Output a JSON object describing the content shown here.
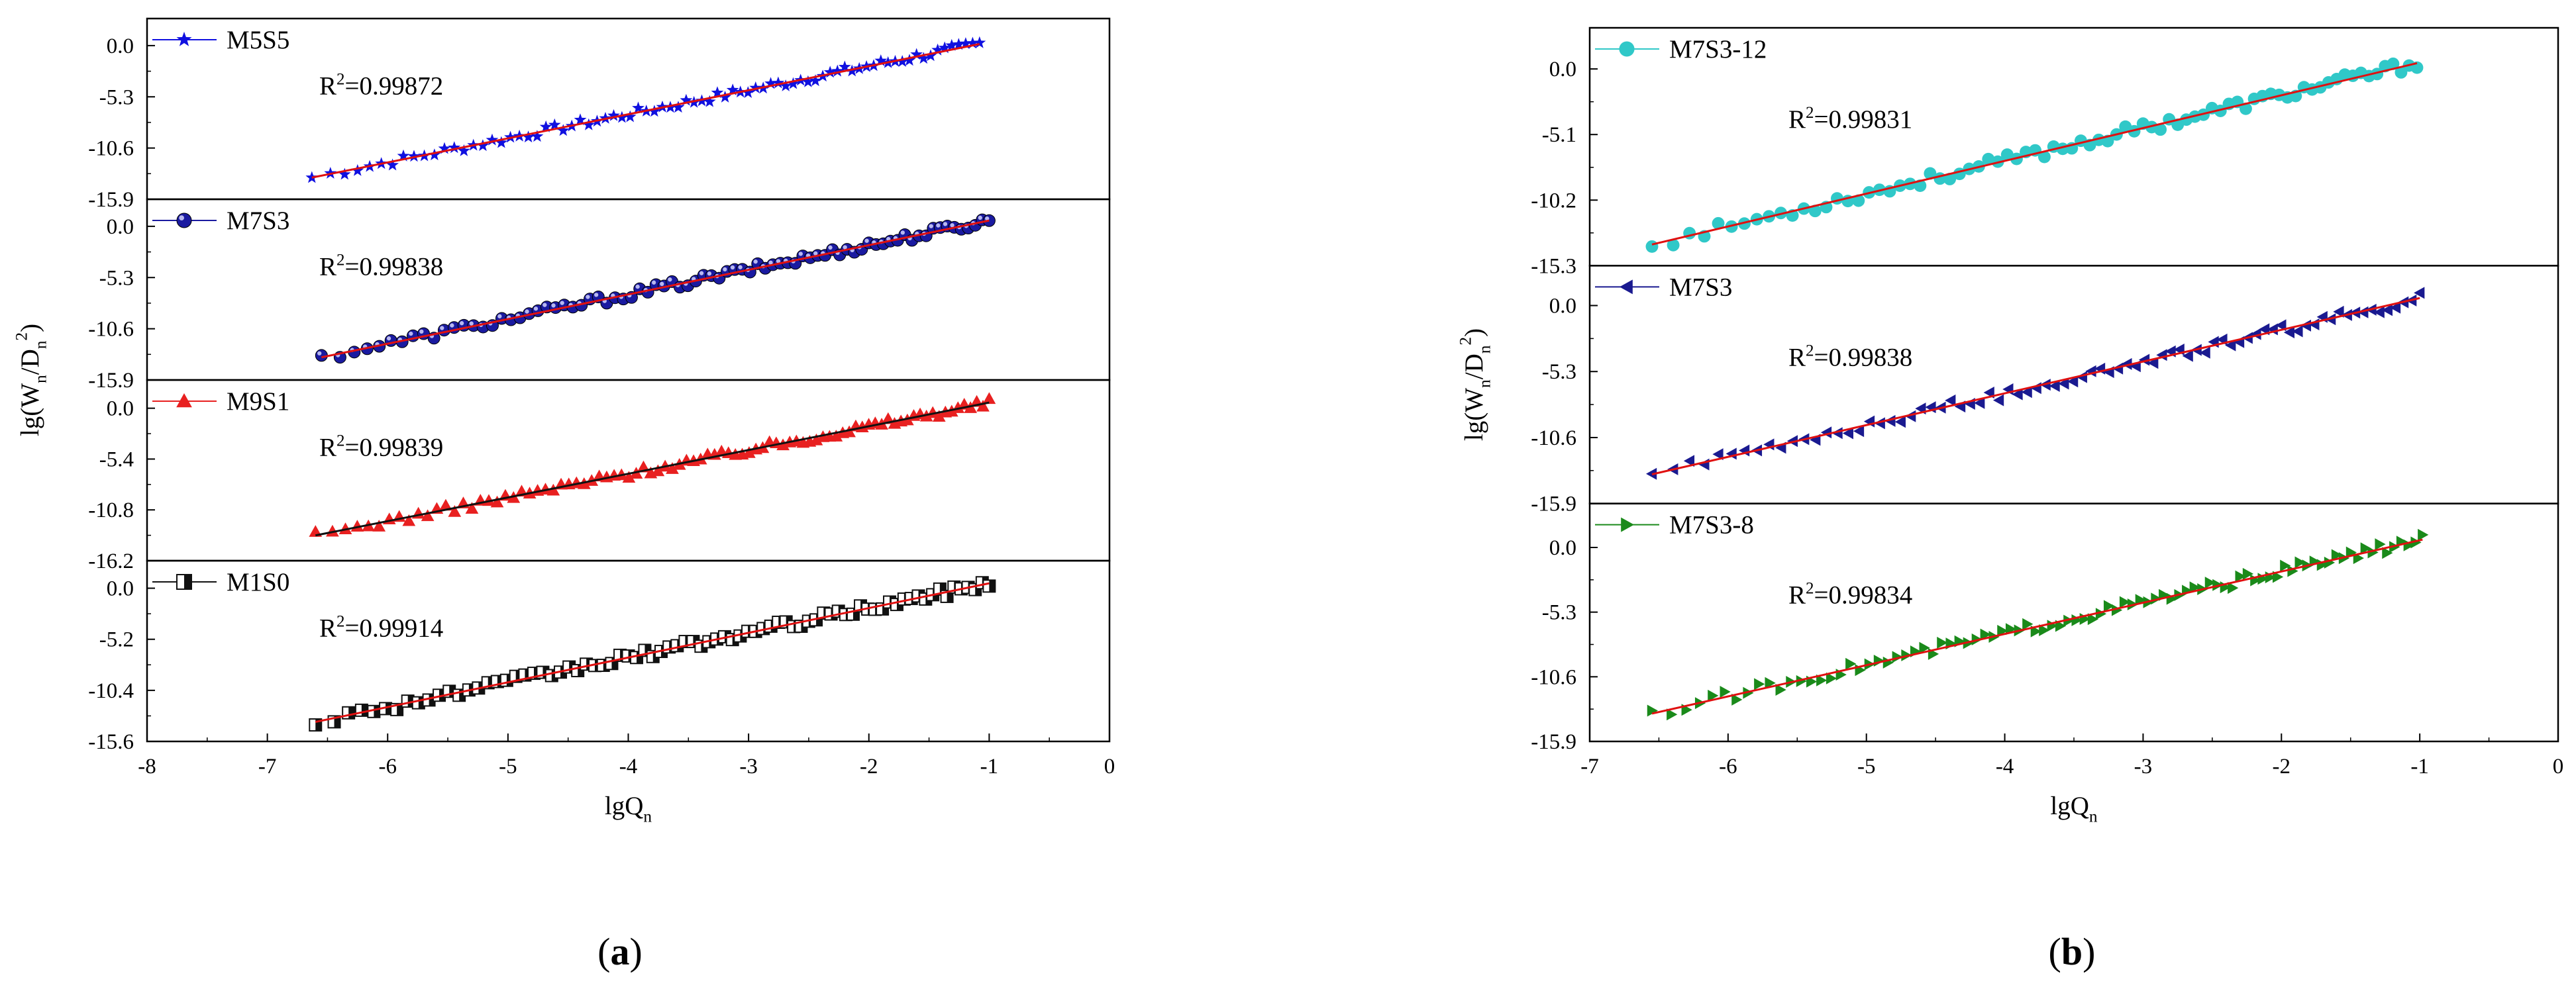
{
  "figure": {
    "captions": [
      {
        "open": "(",
        "letter": "a",
        "close": ")"
      },
      {
        "open": "(",
        "letter": "b",
        "close": ")"
      }
    ]
  },
  "chart_data": [
    {
      "id": "a",
      "type": "scatter",
      "caption": "(a)",
      "xlabel": "lgQ_n",
      "ylabel": "lg(W_n/D_n^2)",
      "xlim": [
        -8,
        0
      ],
      "x_ticks": [
        "-8",
        "-7",
        "-6",
        "-5",
        "-4",
        "-3",
        "-2",
        "-1",
        "0"
      ],
      "panels": [
        {
          "series_name": "M5S5",
          "marker": "star",
          "marker_color": "#1010e0",
          "fit_color": "#e01010",
          "r2_label": "R",
          "r2_value": "=0.99872",
          "ylim": [
            -15.9,
            2.8
          ],
          "y_ticks": [
            "0.0",
            "-5.3",
            "-10.6",
            "-15.9"
          ],
          "y_tick_values": [
            0.0,
            -5.3,
            -10.6,
            -15.9
          ],
          "x_start": -6.63,
          "x_end": -1.08,
          "fit": {
            "slope": 2.49,
            "intercept": 2.85
          },
          "density": 80
        },
        {
          "series_name": "M7S3",
          "marker": "sphere",
          "marker_color": "#1a1aa0",
          "fit_color": "#e01010",
          "r2_label": "R",
          "r2_value": "=0.99838",
          "ylim": [
            -15.9,
            2.8
          ],
          "y_ticks": [
            "0.0",
            "-5.3",
            "-10.6",
            "-15.9"
          ],
          "y_tick_values": [
            0.0,
            -5.3,
            -10.6,
            -15.9
          ],
          "x_start": -6.55,
          "x_end": -1.0,
          "fit": {
            "slope": 2.55,
            "intercept": 3.15
          },
          "density": 80
        },
        {
          "series_name": "M9S1",
          "marker": "triangle-up",
          "marker_color": "#e82020",
          "fit_color": "#111111",
          "r2_label": "R",
          "r2_value": "=0.99839",
          "ylim": [
            -16.2,
            3.0
          ],
          "y_ticks": [
            "0.0",
            "-5.4",
            "-10.8",
            "-16.2"
          ],
          "y_tick_values": [
            0.0,
            -5.4,
            -10.8,
            -16.2
          ],
          "x_start": -6.6,
          "x_end": -1.0,
          "fit": {
            "slope": 2.52,
            "intercept": 3.12
          },
          "density": 90
        },
        {
          "series_name": "M1S0",
          "marker": "half-square",
          "marker_color": "#111111",
          "fit_color": "#e01010",
          "r2_label": "R",
          "r2_value": "=0.99914",
          "ylim": [
            -15.6,
            2.8
          ],
          "y_ticks": [
            "0.0",
            "-5.2",
            "-10.4",
            "-15.6"
          ],
          "y_tick_values": [
            0.0,
            -5.2,
            -10.4,
            -15.6
          ],
          "x_start": -6.6,
          "x_end": -1.0,
          "fit": {
            "slope": 2.52,
            "intercept": 3.02
          },
          "density": 80
        }
      ]
    },
    {
      "id": "b",
      "type": "scatter",
      "caption": "(b)",
      "xlabel": "lgQ_n",
      "ylabel": "lg(W_n/D_n^2)",
      "xlim": [
        -7,
        0
      ],
      "x_ticks": [
        "-7",
        "-6",
        "-5",
        "-4",
        "-3",
        "-2",
        "-1",
        "0"
      ],
      "panels": [
        {
          "series_name": "M7S3-12",
          "marker": "circle",
          "marker_color": "#30c8c8",
          "fit_color": "#e01010",
          "r2_label": "R",
          "r2_value": "=0.99831",
          "ylim": [
            -15.3,
            3.2
          ],
          "y_ticks": [
            "0.0",
            "-5.1",
            "-10.2",
            "-15.3"
          ],
          "y_tick_values": [
            0.0,
            -5.1,
            -10.2,
            -15.3
          ],
          "x_start": -6.55,
          "x_end": -1.02,
          "fit": {
            "slope": 2.55,
            "intercept": 3.05
          },
          "density": 80
        },
        {
          "series_name": "M7S3",
          "marker": "triangle-left",
          "marker_color": "#1a1a90",
          "fit_color": "#e01010",
          "r2_label": "R",
          "r2_value": "=0.99838",
          "ylim": [
            -15.9,
            3.2
          ],
          "y_ticks": [
            "0.0",
            "-5.3",
            "-10.6",
            "-15.9"
          ],
          "y_tick_values": [
            0.0,
            -5.3,
            -10.6,
            -15.9
          ],
          "x_start": -6.55,
          "x_end": -1.0,
          "fit": {
            "slope": 2.55,
            "intercept": 3.15
          },
          "density": 80
        },
        {
          "series_name": "M7S3-8",
          "marker": "triangle-right",
          "marker_color": "#1a8a1a",
          "fit_color": "#e01010",
          "r2_label": "R",
          "r2_value": "=0.99834",
          "ylim": [
            -15.9,
            3.6
          ],
          "y_ticks": [
            "0.0",
            "-5.3",
            "-10.6",
            "-15.9"
          ],
          "y_tick_values": [
            0.0,
            -5.3,
            -10.6,
            -15.9
          ],
          "x_start": -6.55,
          "x_end": -0.98,
          "fit": {
            "slope": 2.56,
            "intercept": 3.15
          },
          "density": 90
        }
      ]
    }
  ]
}
